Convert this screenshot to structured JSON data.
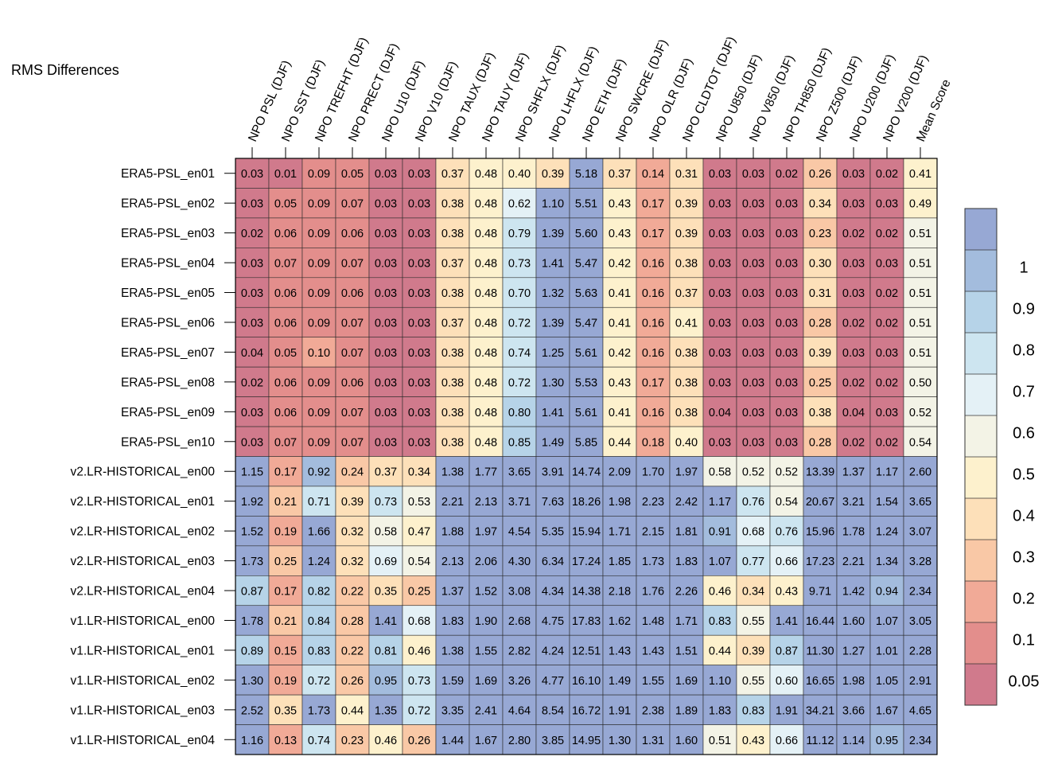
{
  "chart_data": {
    "type": "heatmap",
    "title": "RMS Differences",
    "columns": [
      "NPO PSL (DJF)",
      "NPO SST (DJF)",
      "NPO TREFHT (DJF)",
      "NPO PRECT (DJF)",
      "NPO U10 (DJF)",
      "NPO V10 (DJF)",
      "NPO TAUX (DJF)",
      "NPO TAUY (DJF)",
      "NPO SHFLX (DJF)",
      "NPO LHFLX (DJF)",
      "NPO ETH (DJF)",
      "NPO SWCRE (DJF)",
      "NPO OLR (DJF)",
      "NPO CLDTOT (DJF)",
      "NPO U850 (DJF)",
      "NPO V850 (DJF)",
      "NPO TH850 (DJF)",
      "NPO Z500 (DJF)",
      "NPO U200 (DJF)",
      "NPO V200 (DJF)",
      "Mean Score"
    ],
    "rows": [
      "ERA5-PSL_en01",
      "ERA5-PSL_en02",
      "ERA5-PSL_en03",
      "ERA5-PSL_en04",
      "ERA5-PSL_en05",
      "ERA5-PSL_en06",
      "ERA5-PSL_en07",
      "ERA5-PSL_en08",
      "ERA5-PSL_en09",
      "ERA5-PSL_en10",
      "v2.LR-HISTORICAL_en00",
      "v2.LR-HISTORICAL_en01",
      "v2.LR-HISTORICAL_en02",
      "v2.LR-HISTORICAL_en03",
      "v2.LR-HISTORICAL_en04",
      "v1.LR-HISTORICAL_en00",
      "v1.LR-HISTORICAL_en01",
      "v1.LR-HISTORICAL_en02",
      "v1.LR-HISTORICAL_en03",
      "v1.LR-HISTORICAL_en04"
    ],
    "values": [
      [
        "0.03",
        "0.01",
        "0.09",
        "0.05",
        "0.03",
        "0.03",
        "0.37",
        "0.48",
        "0.40",
        "0.39",
        "5.18",
        "0.37",
        "0.14",
        "0.31",
        "0.03",
        "0.03",
        "0.02",
        "0.26",
        "0.03",
        "0.02",
        "0.41"
      ],
      [
        "0.03",
        "0.05",
        "0.09",
        "0.07",
        "0.03",
        "0.03",
        "0.38",
        "0.48",
        "0.62",
        "1.10",
        "5.51",
        "0.43",
        "0.17",
        "0.39",
        "0.03",
        "0.03",
        "0.03",
        "0.34",
        "0.03",
        "0.03",
        "0.49"
      ],
      [
        "0.02",
        "0.06",
        "0.09",
        "0.06",
        "0.03",
        "0.03",
        "0.38",
        "0.48",
        "0.79",
        "1.39",
        "5.60",
        "0.43",
        "0.17",
        "0.39",
        "0.03",
        "0.03",
        "0.03",
        "0.23",
        "0.02",
        "0.02",
        "0.51"
      ],
      [
        "0.03",
        "0.07",
        "0.09",
        "0.07",
        "0.03",
        "0.03",
        "0.37",
        "0.48",
        "0.73",
        "1.41",
        "5.47",
        "0.42",
        "0.16",
        "0.38",
        "0.03",
        "0.03",
        "0.03",
        "0.30",
        "0.03",
        "0.03",
        "0.51"
      ],
      [
        "0.03",
        "0.06",
        "0.09",
        "0.06",
        "0.03",
        "0.03",
        "0.38",
        "0.48",
        "0.70",
        "1.32",
        "5.63",
        "0.41",
        "0.16",
        "0.37",
        "0.03",
        "0.03",
        "0.03",
        "0.31",
        "0.03",
        "0.02",
        "0.51"
      ],
      [
        "0.03",
        "0.06",
        "0.09",
        "0.07",
        "0.03",
        "0.03",
        "0.37",
        "0.48",
        "0.72",
        "1.39",
        "5.47",
        "0.41",
        "0.16",
        "0.41",
        "0.03",
        "0.03",
        "0.03",
        "0.28",
        "0.02",
        "0.02",
        "0.51"
      ],
      [
        "0.04",
        "0.05",
        "0.10",
        "0.07",
        "0.03",
        "0.03",
        "0.38",
        "0.48",
        "0.74",
        "1.25",
        "5.61",
        "0.42",
        "0.16",
        "0.38",
        "0.03",
        "0.03",
        "0.03",
        "0.39",
        "0.03",
        "0.03",
        "0.51"
      ],
      [
        "0.02",
        "0.06",
        "0.09",
        "0.06",
        "0.03",
        "0.03",
        "0.38",
        "0.48",
        "0.72",
        "1.30",
        "5.53",
        "0.43",
        "0.17",
        "0.38",
        "0.03",
        "0.03",
        "0.03",
        "0.25",
        "0.02",
        "0.02",
        "0.50"
      ],
      [
        "0.03",
        "0.06",
        "0.09",
        "0.07",
        "0.03",
        "0.03",
        "0.38",
        "0.48",
        "0.80",
        "1.41",
        "5.61",
        "0.41",
        "0.16",
        "0.38",
        "0.04",
        "0.03",
        "0.03",
        "0.38",
        "0.04",
        "0.03",
        "0.52"
      ],
      [
        "0.03",
        "0.07",
        "0.09",
        "0.07",
        "0.03",
        "0.03",
        "0.38",
        "0.48",
        "0.85",
        "1.49",
        "5.85",
        "0.44",
        "0.18",
        "0.40",
        "0.03",
        "0.03",
        "0.03",
        "0.28",
        "0.02",
        "0.02",
        "0.54"
      ],
      [
        "1.15",
        "0.17",
        "0.92",
        "0.24",
        "0.37",
        "0.34",
        "1.38",
        "1.77",
        "3.65",
        "3.91",
        "14.74",
        "2.09",
        "1.70",
        "1.97",
        "0.58",
        "0.52",
        "0.52",
        "13.39",
        "1.37",
        "1.17",
        "2.60"
      ],
      [
        "1.92",
        "0.21",
        "0.71",
        "0.39",
        "0.73",
        "0.53",
        "2.21",
        "2.13",
        "3.71",
        "7.63",
        "18.26",
        "1.98",
        "2.23",
        "2.42",
        "1.17",
        "0.76",
        "0.54",
        "20.67",
        "3.21",
        "1.54",
        "3.65"
      ],
      [
        "1.52",
        "0.19",
        "1.66",
        "0.32",
        "0.58",
        "0.47",
        "1.88",
        "1.97",
        "4.54",
        "5.35",
        "15.94",
        "1.71",
        "2.15",
        "1.81",
        "0.91",
        "0.68",
        "0.76",
        "15.96",
        "1.78",
        "1.24",
        "3.07"
      ],
      [
        "1.73",
        "0.25",
        "1.24",
        "0.32",
        "0.69",
        "0.54",
        "2.13",
        "2.06",
        "4.30",
        "6.34",
        "17.24",
        "1.85",
        "1.73",
        "1.83",
        "1.07",
        "0.77",
        "0.66",
        "17.23",
        "2.21",
        "1.34",
        "3.28"
      ],
      [
        "0.87",
        "0.17",
        "0.82",
        "0.22",
        "0.35",
        "0.25",
        "1.37",
        "1.52",
        "3.08",
        "4.34",
        "14.38",
        "2.18",
        "1.76",
        "2.26",
        "0.46",
        "0.34",
        "0.43",
        "9.71",
        "1.42",
        "0.94",
        "2.34"
      ],
      [
        "1.78",
        "0.21",
        "0.84",
        "0.28",
        "1.41",
        "0.68",
        "1.83",
        "1.90",
        "2.68",
        "4.75",
        "17.83",
        "1.62",
        "1.48",
        "1.71",
        "0.83",
        "0.55",
        "1.41",
        "16.44",
        "1.60",
        "1.07",
        "3.05"
      ],
      [
        "0.89",
        "0.15",
        "0.83",
        "0.22",
        "0.81",
        "0.46",
        "1.38",
        "1.55",
        "2.82",
        "4.24",
        "12.51",
        "1.43",
        "1.43",
        "1.51",
        "0.44",
        "0.39",
        "0.87",
        "11.30",
        "1.27",
        "1.01",
        "2.28"
      ],
      [
        "1.30",
        "0.19",
        "0.72",
        "0.26",
        "0.95",
        "0.73",
        "1.59",
        "1.69",
        "3.26",
        "4.77",
        "16.10",
        "1.49",
        "1.55",
        "1.69",
        "1.10",
        "0.55",
        "0.60",
        "16.65",
        "1.98",
        "1.05",
        "2.91"
      ],
      [
        "2.52",
        "0.35",
        "1.73",
        "0.44",
        "1.35",
        "0.72",
        "3.35",
        "2.41",
        "4.64",
        "8.54",
        "16.72",
        "1.91",
        "2.38",
        "1.89",
        "1.83",
        "0.83",
        "1.91",
        "34.21",
        "3.66",
        "1.67",
        "4.65"
      ],
      [
        "1.16",
        "0.13",
        "0.74",
        "0.23",
        "0.46",
        "0.26",
        "1.44",
        "1.67",
        "2.80",
        "3.85",
        "14.95",
        "1.30",
        "1.31",
        "1.60",
        "0.51",
        "0.43",
        "0.66",
        "11.12",
        "1.14",
        "0.95",
        "2.34"
      ]
    ],
    "colorbar": {
      "boundaries": [
        0,
        0.05,
        0.1,
        0.2,
        0.3,
        0.4,
        0.5,
        0.6,
        0.7,
        0.8,
        0.9,
        1,
        100
      ],
      "colors": [
        "#d07a8c",
        "#e38e8c",
        "#f1aa97",
        "#f9c8a6",
        "#fde0b9",
        "#fdf1cd",
        "#f3f3e6",
        "#e4f1f6",
        "#cde5f0",
        "#b6d3e8",
        "#a3bcdd",
        "#97a8d4"
      ],
      "tick_labels": [
        "0.05",
        "0.1",
        "0.2",
        "0.3",
        "0.4",
        "0.5",
        "0.6",
        "0.7",
        "0.8",
        "0.9",
        "1"
      ]
    },
    "legend": "right"
  }
}
